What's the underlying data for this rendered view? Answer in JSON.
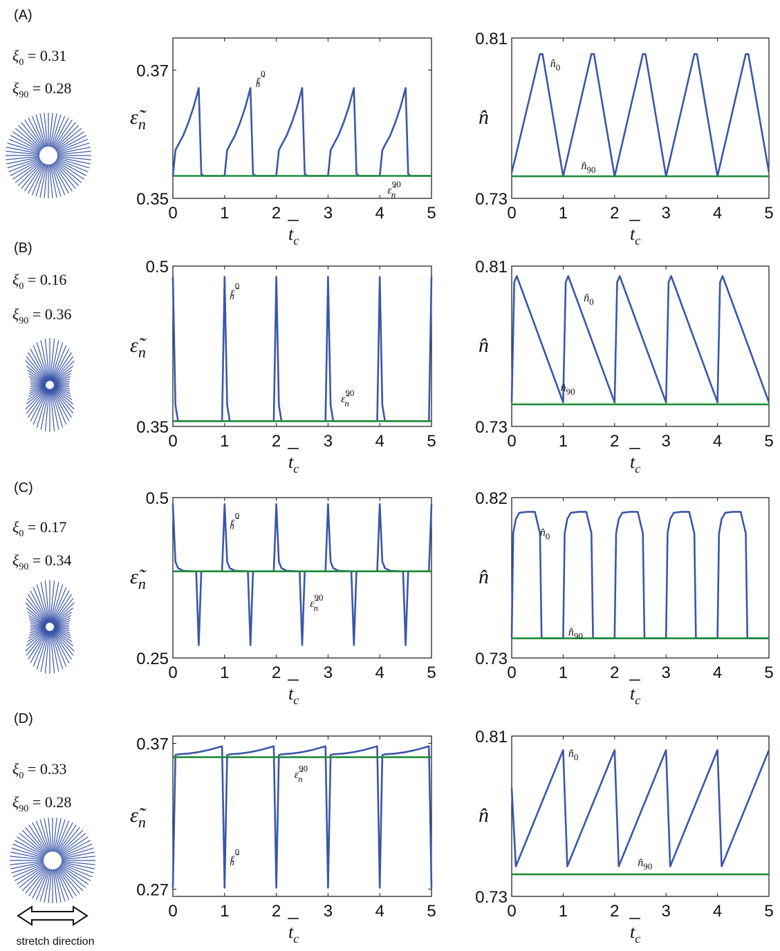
{
  "colors": {
    "series_blue": "#3a56a8",
    "series_green": "#1f8a3a",
    "axis": "#111111",
    "sketch": "#3a56a8"
  },
  "stretch_label": "stretch direction",
  "rows": [
    {
      "label": "(A)",
      "xi0": "0.31",
      "xi90": "0.28",
      "sketch": "circle",
      "left": {
        "ylabel": "ε̃",
        "ylabel_sub": "n",
        "ann_main": {
          "base": "ε̃",
          "sub": "n",
          "sup": "0"
        },
        "ann_flat": {
          "base": "ε̃",
          "sub": "n",
          "sup": "90"
        }
      },
      "right": {
        "ylabel": "n̂",
        "ann_main": {
          "base": "n̂",
          "sub": "0"
        },
        "ann_flat": {
          "base": "n̂",
          "sub": "90"
        }
      }
    },
    {
      "label": "(B)",
      "xi0": "0.16",
      "xi90": "0.36",
      "sketch": "hourglass",
      "left": {
        "ylabel": "ε̃",
        "ylabel_sub": "n",
        "ann_main": {
          "base": "ε̃",
          "sub": "n",
          "sup": "0"
        },
        "ann_flat": {
          "base": "ε̃",
          "sub": "n",
          "sup": "90"
        }
      },
      "right": {
        "ylabel": "n̂",
        "ann_main": {
          "base": "n̂",
          "sub": "0"
        },
        "ann_flat": {
          "base": "n̂",
          "sub": "90"
        }
      }
    },
    {
      "label": "(C)",
      "xi0": "0.17",
      "xi90": "0.34",
      "sketch": "hourglass",
      "left": {
        "ylabel": "ε̃",
        "ylabel_sub": "n",
        "ann_main": {
          "base": "ε̃",
          "sub": "n",
          "sup": "0"
        },
        "ann_flat": {
          "base": "ε̃",
          "sub": "n",
          "sup": "90"
        }
      },
      "right": {
        "ylabel": "n̂",
        "ann_main": {
          "base": "n̂",
          "sub": "0"
        },
        "ann_flat": {
          "base": "n̂",
          "sub": "90"
        }
      }
    },
    {
      "label": "(D)",
      "xi0": "0.33",
      "xi90": "0.28",
      "sketch": "circle",
      "left": {
        "ylabel": "ε̃",
        "ylabel_sub": "n",
        "ann_main": {
          "base": "ε̃",
          "sub": "n",
          "sup": "0"
        },
        "ann_flat": {
          "base": "ε̃",
          "sub": "n",
          "sup": "90"
        }
      },
      "right": {
        "ylabel": "n̂",
        "ann_main": {
          "base": "n̂",
          "sub": "0"
        },
        "ann_flat": {
          "base": "n̂",
          "sub": "90"
        }
      }
    }
  ],
  "chart_data": [
    {
      "panel": "A-left",
      "type": "line",
      "xlabel": "t_c",
      "xlim": [
        0,
        5
      ],
      "ylim": [
        0.35,
        0.375
      ],
      "xticks": [
        "0",
        "1",
        "2",
        "3",
        "4",
        "5"
      ],
      "yticks": [
        {
          "value": 0.37,
          "label": "0.37"
        },
        {
          "value": 0.35,
          "label": "0.35"
        }
      ],
      "series": [
        {
          "color": "blue",
          "x": [
            0,
            0.05,
            0.1,
            0.2,
            0.3,
            0.4,
            0.5,
            0.55,
            0.6,
            0.7,
            0.8,
            0.9,
            1.0,
            1.05,
            1.1,
            1.2,
            1.3,
            1.4,
            1.5,
            1.55,
            1.6,
            1.7,
            1.8,
            1.9,
            2.0,
            2.05,
            2.1,
            2.2,
            2.3,
            2.4,
            2.5,
            2.55,
            2.6,
            2.7,
            2.8,
            2.9,
            3.0,
            3.05,
            3.1,
            3.2,
            3.3,
            3.4,
            3.5,
            3.55,
            3.6,
            3.7,
            3.8,
            3.9,
            4.0,
            4.05,
            4.1,
            4.2,
            4.3,
            4.4,
            4.5,
            4.55,
            4.6,
            4.7,
            4.8,
            4.9,
            5.0
          ],
          "y": [
            0.3535,
            0.3575,
            0.3583,
            0.3598,
            0.3618,
            0.3642,
            0.3672,
            0.3538,
            0.3535,
            0.3535,
            0.3535,
            0.3535,
            0.3535,
            0.3575,
            0.3583,
            0.3598,
            0.3618,
            0.3642,
            0.3672,
            0.3538,
            0.3535,
            0.3535,
            0.3535,
            0.3535,
            0.3535,
            0.3575,
            0.3583,
            0.3598,
            0.3618,
            0.3642,
            0.3672,
            0.3538,
            0.3535,
            0.3535,
            0.3535,
            0.3535,
            0.3535,
            0.3575,
            0.3583,
            0.3598,
            0.3618,
            0.3642,
            0.3672,
            0.3538,
            0.3535,
            0.3535,
            0.3535,
            0.3535,
            0.3535,
            0.3575,
            0.3583,
            0.3598,
            0.3618,
            0.3642,
            0.3672,
            0.3538,
            0.3535,
            0.3535,
            0.3535,
            0.3535,
            0.3535
          ]
        },
        {
          "color": "green",
          "x": [
            0,
            5
          ],
          "y": [
            0.3535,
            0.3535
          ]
        }
      ]
    },
    {
      "panel": "A-right",
      "type": "line",
      "xlabel": "t_c",
      "xlim": [
        0,
        5
      ],
      "ylim": [
        0.73,
        0.81
      ],
      "xticks": [
        "0",
        "1",
        "2",
        "3",
        "4",
        "5"
      ],
      "yticks": [
        {
          "value": 0.81,
          "label": "0.81"
        },
        {
          "value": 0.73,
          "label": "0.73"
        }
      ],
      "series": [
        {
          "color": "blue",
          "x": [
            0,
            0.05,
            0.55,
            0.6,
            1.0,
            1.55,
            1.6,
            2.0,
            2.55,
            2.6,
            3.0,
            3.55,
            3.6,
            4.0,
            4.55,
            4.6,
            5.0
          ],
          "y": [
            0.743,
            0.748,
            0.802,
            0.802,
            0.741,
            0.802,
            0.802,
            0.741,
            0.802,
            0.802,
            0.741,
            0.802,
            0.802,
            0.741,
            0.802,
            0.802,
            0.743
          ]
        },
        {
          "color": "green",
          "x": [
            0,
            5
          ],
          "y": [
            0.741,
            0.741
          ]
        }
      ]
    },
    {
      "panel": "B-left",
      "type": "line",
      "xlabel": "t_c",
      "xlim": [
        0,
        5
      ],
      "ylim": [
        0.35,
        0.5
      ],
      "xticks": [
        "0",
        "1",
        "2",
        "3",
        "4",
        "5"
      ],
      "yticks": [
        {
          "value": 0.5,
          "label": "0.5"
        },
        {
          "value": 0.35,
          "label": "0.35"
        }
      ],
      "series": [
        {
          "color": "blue",
          "x": [
            0,
            0.05,
            0.1,
            0.95,
            1.0,
            1.05,
            1.1,
            1.95,
            2.0,
            2.05,
            2.1,
            2.95,
            3.0,
            3.05,
            3.1,
            3.95,
            4.0,
            4.05,
            4.1,
            4.95,
            5.0
          ],
          "y": [
            0.49,
            0.37,
            0.355,
            0.355,
            0.49,
            0.37,
            0.355,
            0.355,
            0.49,
            0.37,
            0.355,
            0.355,
            0.49,
            0.37,
            0.355,
            0.355,
            0.49,
            0.37,
            0.355,
            0.355,
            0.49
          ]
        },
        {
          "color": "green",
          "x": [
            0,
            5
          ],
          "y": [
            0.355,
            0.355
          ]
        }
      ]
    },
    {
      "panel": "B-right",
      "type": "line",
      "xlabel": "t_c",
      "xlim": [
        0,
        5
      ],
      "ylim": [
        0.73,
        0.81
      ],
      "xticks": [
        "0",
        "1",
        "2",
        "3",
        "4",
        "5"
      ],
      "yticks": [
        {
          "value": 0.81,
          "label": "0.81"
        },
        {
          "value": 0.73,
          "label": "0.73"
        }
      ],
      "series": [
        {
          "color": "blue",
          "x": [
            0,
            0.05,
            0.1,
            1.0,
            1.05,
            1.1,
            2.0,
            2.05,
            2.1,
            3.0,
            3.05,
            3.1,
            4.0,
            4.05,
            4.1,
            5.0
          ],
          "y": [
            0.742,
            0.802,
            0.805,
            0.742,
            0.802,
            0.805,
            0.742,
            0.802,
            0.805,
            0.742,
            0.802,
            0.805,
            0.742,
            0.802,
            0.805,
            0.742
          ]
        },
        {
          "color": "green",
          "x": [
            0,
            5
          ],
          "y": [
            0.741,
            0.741
          ]
        }
      ]
    },
    {
      "panel": "C-left",
      "type": "line",
      "xlabel": "t_c",
      "xlim": [
        0,
        5
      ],
      "ylim": [
        0.25,
        0.5
      ],
      "xticks": [
        "0",
        "1",
        "2",
        "3",
        "4",
        "5"
      ],
      "yticks": [
        {
          "value": 0.5,
          "label": "0.5"
        },
        {
          "value": 0.25,
          "label": "0.25"
        }
      ],
      "series": [
        {
          "color": "blue",
          "x": [
            0,
            0.05,
            0.1,
            0.2,
            0.4,
            0.45,
            0.5,
            0.55,
            0.6,
            0.95,
            1.0,
            1.05,
            1.1,
            1.2,
            1.4,
            1.45,
            1.5,
            1.55,
            1.6,
            1.95,
            2.0,
            2.05,
            2.1,
            2.2,
            2.4,
            2.45,
            2.5,
            2.55,
            2.6,
            2.95,
            3.0,
            3.05,
            3.1,
            3.2,
            3.4,
            3.45,
            3.5,
            3.55,
            3.6,
            3.95,
            4.0,
            4.05,
            4.1,
            4.2,
            4.4,
            4.45,
            4.5,
            4.55,
            4.6,
            4.95,
            5.0
          ],
          "y": [
            0.49,
            0.4,
            0.39,
            0.386,
            0.385,
            0.385,
            0.27,
            0.385,
            0.385,
            0.385,
            0.49,
            0.4,
            0.39,
            0.386,
            0.385,
            0.385,
            0.27,
            0.385,
            0.385,
            0.385,
            0.49,
            0.4,
            0.39,
            0.386,
            0.385,
            0.385,
            0.27,
            0.385,
            0.385,
            0.385,
            0.49,
            0.4,
            0.39,
            0.386,
            0.385,
            0.385,
            0.27,
            0.385,
            0.385,
            0.385,
            0.49,
            0.4,
            0.39,
            0.386,
            0.385,
            0.385,
            0.27,
            0.385,
            0.385,
            0.385,
            0.49
          ]
        },
        {
          "color": "green",
          "x": [
            0,
            5
          ],
          "y": [
            0.385,
            0.385
          ]
        }
      ]
    },
    {
      "panel": "C-right",
      "type": "line",
      "xlabel": "t_c",
      "xlim": [
        0,
        5
      ],
      "ylim": [
        0.73,
        0.82
      ],
      "xticks": [
        "0",
        "1",
        "2",
        "3",
        "4",
        "5"
      ],
      "yticks": [
        {
          "value": 0.82,
          "label": "0.82"
        },
        {
          "value": 0.73,
          "label": "0.73"
        }
      ],
      "series": [
        {
          "color": "blue",
          "x": [
            0,
            0.03,
            0.08,
            0.15,
            0.3,
            0.45,
            0.55,
            0.58,
            1.0,
            1.03,
            1.08,
            1.15,
            1.3,
            1.45,
            1.55,
            1.58,
            2.0,
            2.03,
            2.08,
            2.15,
            2.3,
            2.45,
            2.55,
            2.58,
            3.0,
            3.03,
            3.08,
            3.15,
            3.3,
            3.45,
            3.55,
            3.58,
            4.0,
            4.03,
            4.08,
            4.15,
            4.3,
            4.45,
            4.55,
            4.58,
            5.0
          ],
          "y": [
            0.741,
            0.8,
            0.808,
            0.8115,
            0.812,
            0.812,
            0.8,
            0.741,
            0.741,
            0.8,
            0.808,
            0.8115,
            0.812,
            0.812,
            0.8,
            0.741,
            0.741,
            0.8,
            0.808,
            0.8115,
            0.812,
            0.812,
            0.8,
            0.741,
            0.741,
            0.8,
            0.808,
            0.8115,
            0.812,
            0.812,
            0.8,
            0.741,
            0.741,
            0.8,
            0.808,
            0.8115,
            0.812,
            0.812,
            0.8,
            0.741,
            0.741
          ]
        },
        {
          "color": "green",
          "x": [
            0,
            5
          ],
          "y": [
            0.741,
            0.741
          ]
        }
      ]
    },
    {
      "panel": "D-left",
      "type": "line",
      "xlabel": "t_c",
      "xlim": [
        0,
        5
      ],
      "ylim": [
        0.265,
        0.375
      ],
      "xticks": [
        "0",
        "1",
        "2",
        "3",
        "4",
        "5"
      ],
      "yticks": [
        {
          "value": 0.37,
          "label": "0.37"
        },
        {
          "value": 0.27,
          "label": "0.27"
        }
      ],
      "series": [
        {
          "color": "blue",
          "x": [
            0,
            0.05,
            0.1,
            0.3,
            0.5,
            0.7,
            0.95,
            1.0,
            1.05,
            1.1,
            1.3,
            1.5,
            1.7,
            1.95,
            2.0,
            2.05,
            2.1,
            2.3,
            2.5,
            2.7,
            2.95,
            3.0,
            3.05,
            3.1,
            3.3,
            3.5,
            3.7,
            3.95,
            4.0,
            4.05,
            4.1,
            4.3,
            4.5,
            4.7,
            4.95,
            5.0
          ],
          "y": [
            0.271,
            0.362,
            0.3625,
            0.363,
            0.364,
            0.3655,
            0.368,
            0.271,
            0.362,
            0.3625,
            0.363,
            0.364,
            0.3655,
            0.368,
            0.271,
            0.362,
            0.3625,
            0.363,
            0.364,
            0.3655,
            0.368,
            0.271,
            0.362,
            0.3625,
            0.363,
            0.364,
            0.3655,
            0.368,
            0.271,
            0.362,
            0.3625,
            0.363,
            0.364,
            0.3655,
            0.368,
            0.271
          ]
        },
        {
          "color": "green",
          "x": [
            0,
            5
          ],
          "y": [
            0.3605,
            0.3605
          ]
        }
      ]
    },
    {
      "panel": "D-right",
      "type": "line",
      "xlabel": "t_c",
      "xlim": [
        0,
        5
      ],
      "ylim": [
        0.73,
        0.81
      ],
      "xticks": [
        "0",
        "1",
        "2",
        "3",
        "4",
        "5"
      ],
      "yticks": [
        {
          "value": 0.81,
          "label": "0.81"
        },
        {
          "value": 0.73,
          "label": "0.73"
        }
      ],
      "series": [
        {
          "color": "blue",
          "x": [
            0,
            0.08,
            1.0,
            1.08,
            2.0,
            2.08,
            3.0,
            3.08,
            4.0,
            4.08,
            5.0
          ],
          "y": [
            0.784,
            0.745,
            0.803,
            0.745,
            0.803,
            0.745,
            0.803,
            0.745,
            0.803,
            0.745,
            0.803
          ]
        },
        {
          "color": "green",
          "x": [
            0,
            5
          ],
          "y": [
            0.741,
            0.741
          ]
        }
      ]
    }
  ]
}
